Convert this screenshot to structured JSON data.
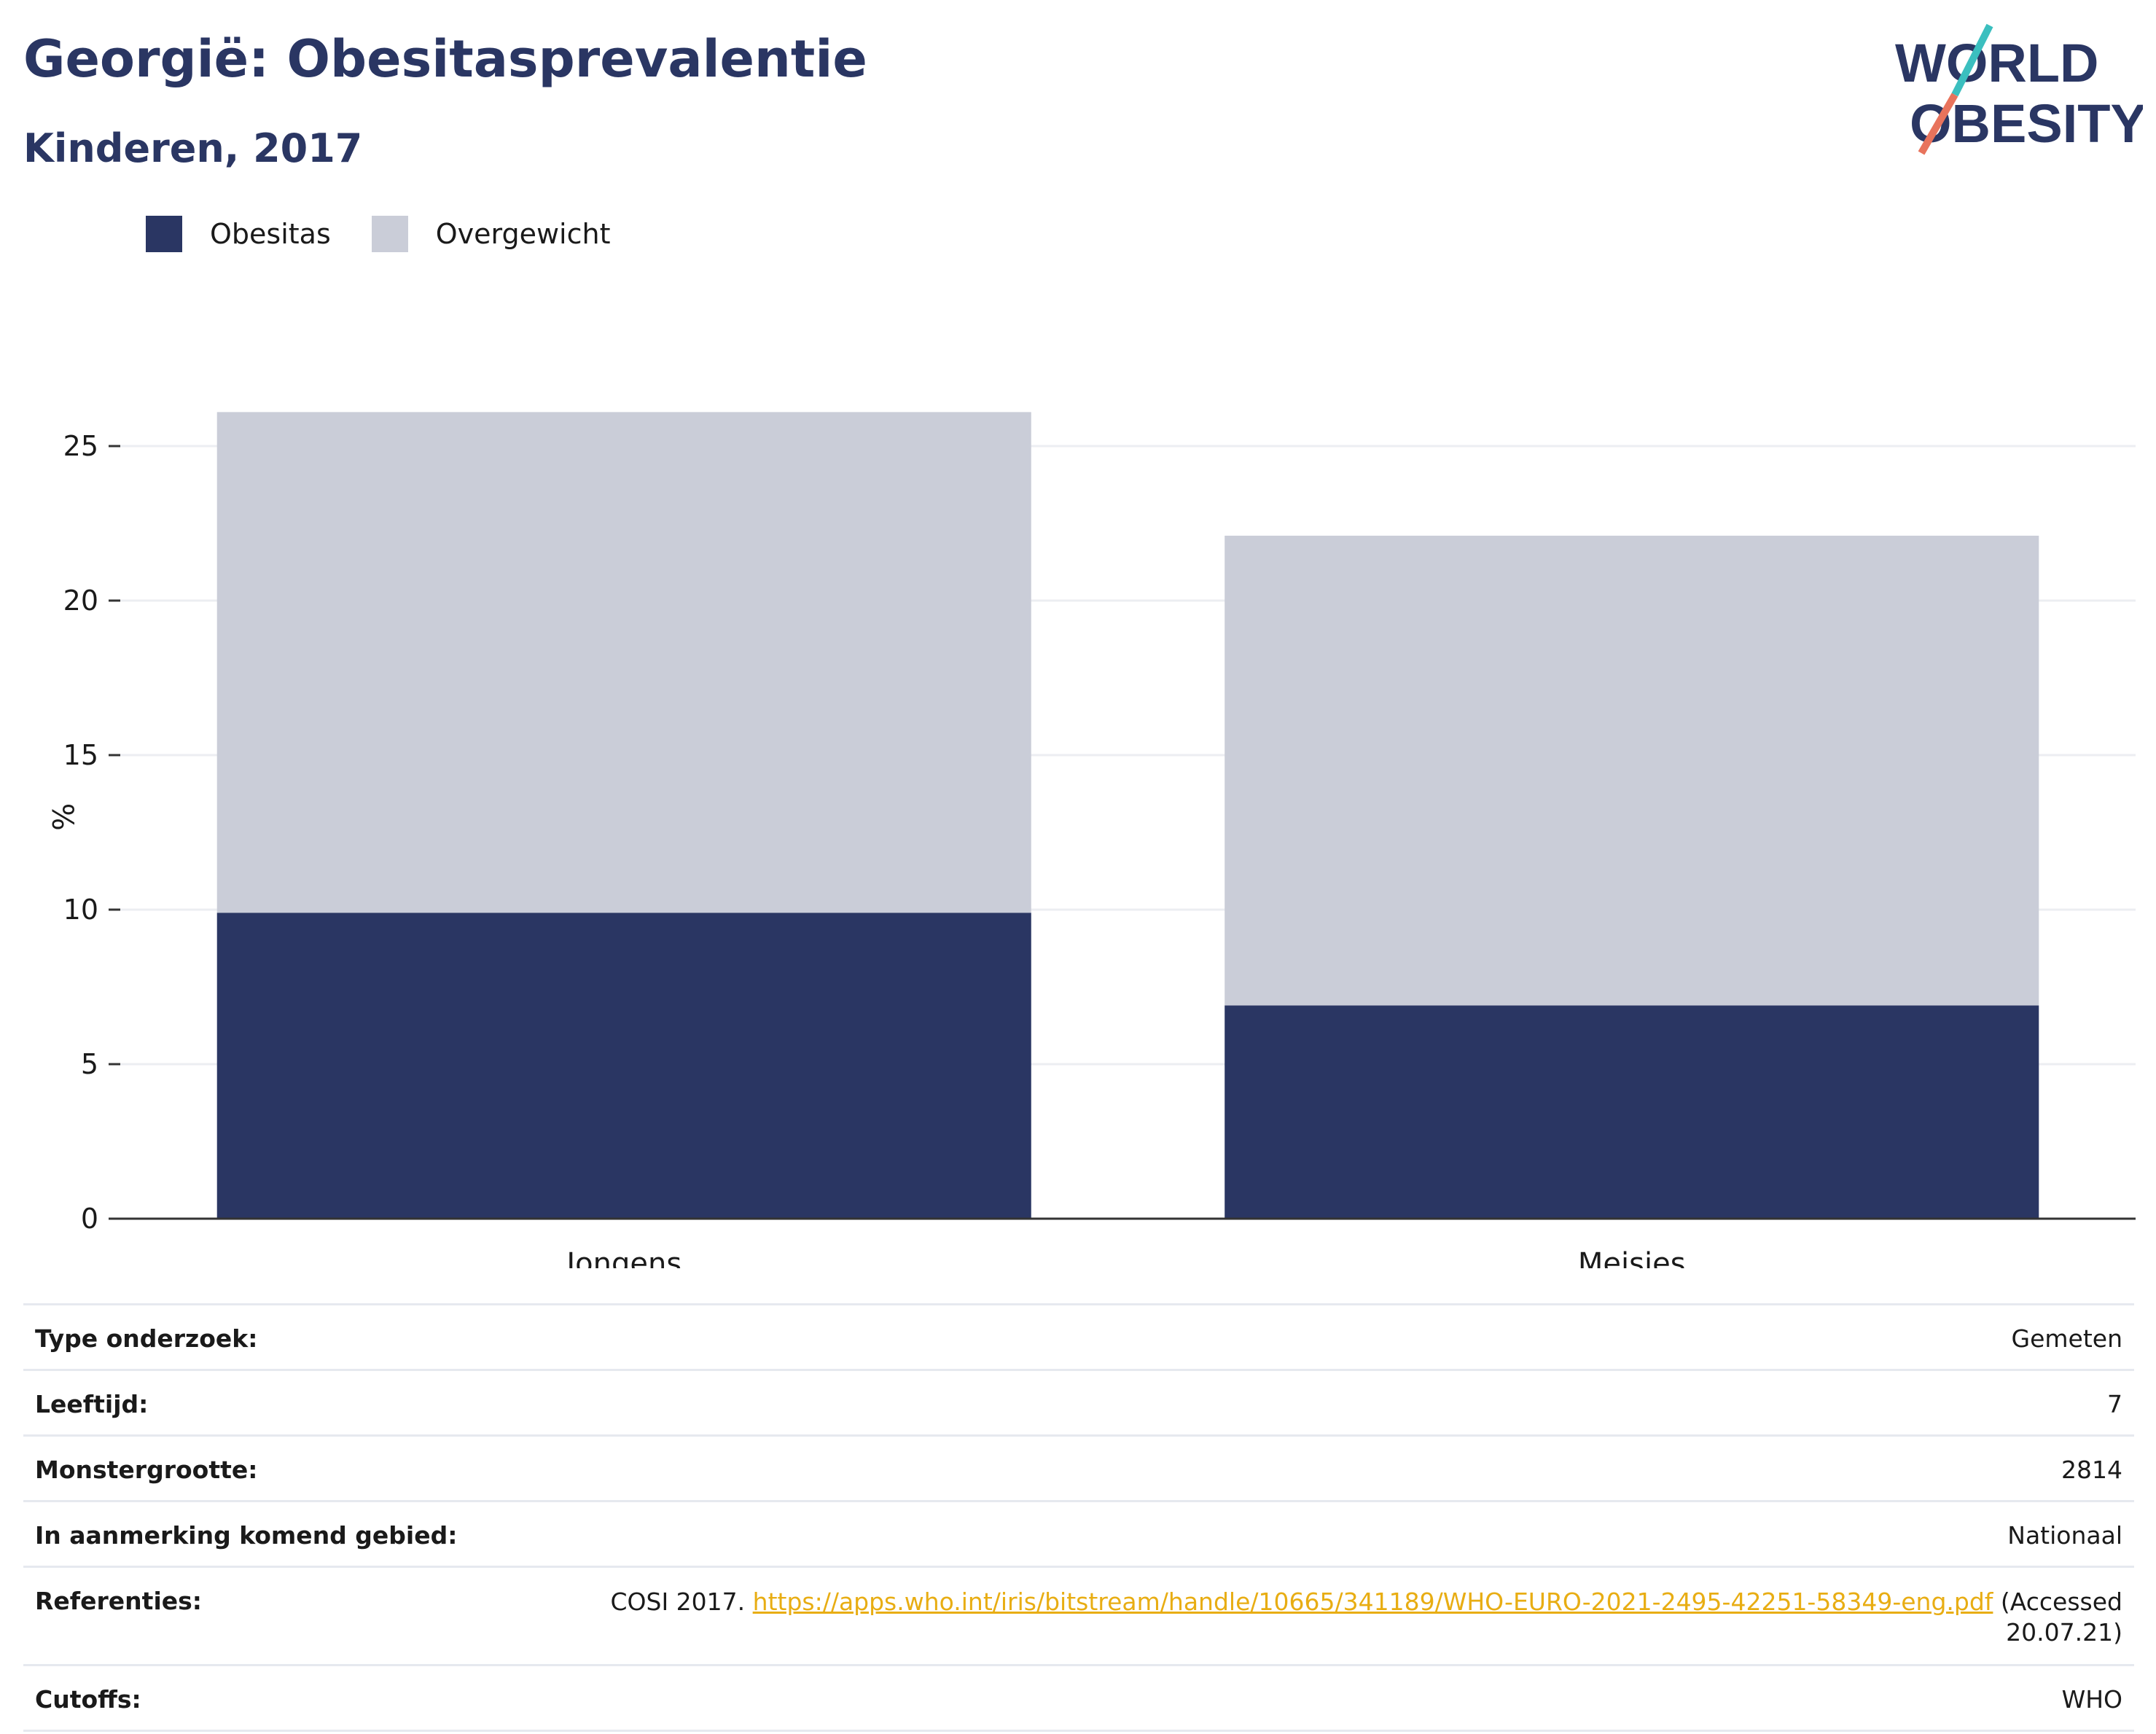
{
  "header": {
    "title": "Georgië: Obesitasprevalentie",
    "subtitle": "Kinderen, 2017"
  },
  "logo": {
    "line1": "WORLD",
    "line2": "OBESITY",
    "colors": {
      "text": "#2a3663",
      "teal": "#3bbfbf",
      "coral": "#e8735c"
    }
  },
  "legend": [
    {
      "label": "Obesitas",
      "color": "#2a3663"
    },
    {
      "label": "Overgewicht",
      "color": "#cacdd8"
    }
  ],
  "chart_data": {
    "type": "bar",
    "stacked": true,
    "categories": [
      "Jongens",
      "Meisjes"
    ],
    "series": [
      {
        "name": "Obesitas",
        "values": [
          9.9,
          6.9
        ],
        "color": "#2a3663"
      },
      {
        "name": "Overgewicht",
        "values": [
          16.2,
          15.2
        ],
        "color": "#cacdd8"
      }
    ],
    "ylabel": "%",
    "ylim": [
      0,
      26.1
    ],
    "yticks": [
      0,
      5,
      10,
      15,
      20,
      25
    ],
    "grid": true,
    "legend_position": "top-left"
  },
  "info_table": [
    {
      "label": "Type onderzoek:",
      "value": "Gemeten"
    },
    {
      "label": "Leeftijd:",
      "value": "7"
    },
    {
      "label": "Monstergrootte:",
      "value": "2814"
    },
    {
      "label": "In aanmerking komend gebied:",
      "value": "Nationaal"
    },
    {
      "label": "Cutoffs:",
      "value": "WHO"
    }
  ],
  "references": {
    "label": "Referenties:",
    "prefix": "COSI 2017. ",
    "link": "https://apps.who.int/iris/bitstream/handle/10665/341189/WHO-EURO-2021-2495-42251-58349-eng.pdf",
    "suffix": " (Accessed 20.07.21)"
  }
}
